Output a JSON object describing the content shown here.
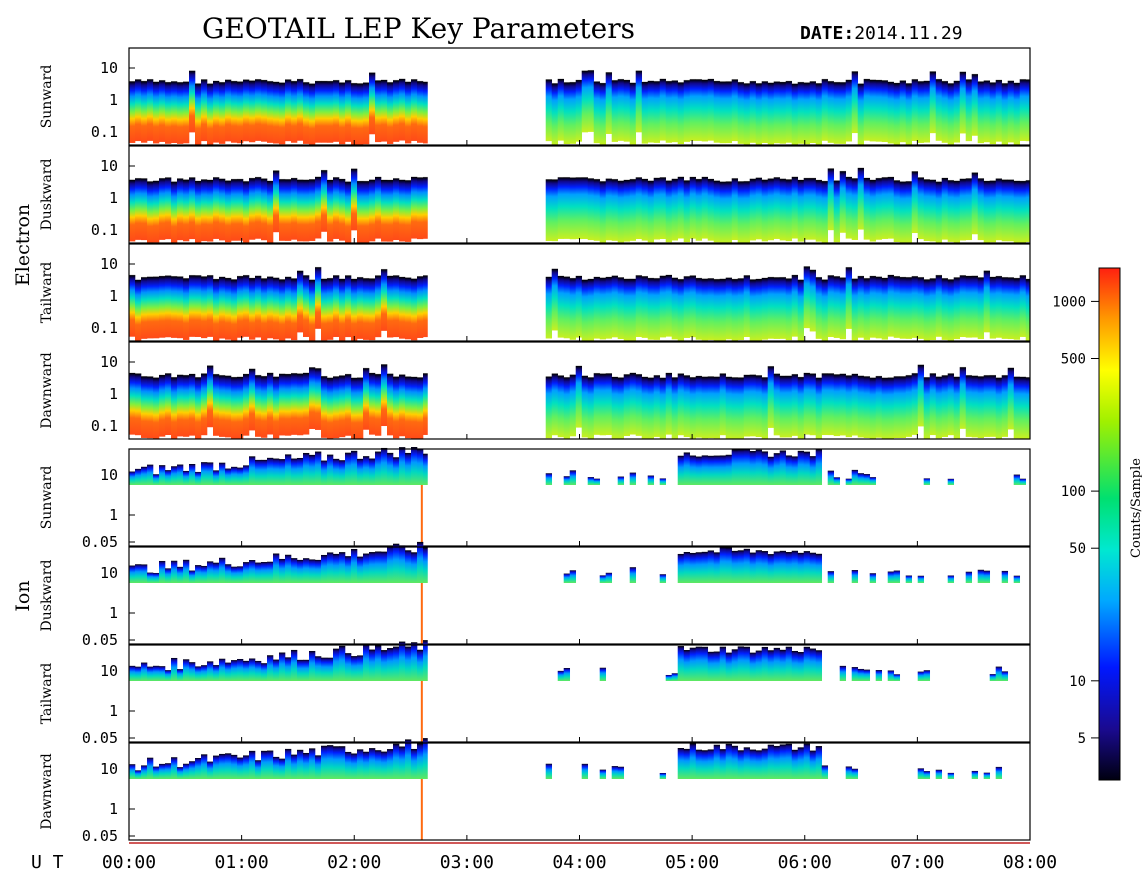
{
  "title": "GEOTAIL LEP Key Parameters",
  "date_label": "DATE:",
  "date_value": "2014.11.29",
  "ut_label": "U T",
  "groups": [
    {
      "name": "Electron",
      "panels": [
        "Sunward",
        "Duskward",
        "Tailward",
        "Dawnward"
      ]
    },
    {
      "name": "Ion",
      "panels": [
        "Sunward",
        "Duskward",
        "Tailward",
        "Dawnward"
      ]
    }
  ],
  "colorbar": {
    "label": "Counts/Sample",
    "ticks": [
      "1000",
      "500",
      "100",
      "50",
      "10",
      "5"
    ],
    "scale": "log",
    "range": [
      3,
      1500
    ]
  },
  "colors": {
    "low": "#000020",
    "mid": "#00e070",
    "high": "#ff4a18"
  },
  "chart_data": {
    "type": "heatmap",
    "title": "GEOTAIL LEP Key Parameters",
    "date": "2014.11.29",
    "x_ticks": [
      "00:00",
      "01:00",
      "02:00",
      "03:00",
      "04:00",
      "05:00",
      "06:00",
      "07:00",
      "08:00"
    ],
    "xlim_hours": [
      0,
      8
    ],
    "xlabel": "U T",
    "colorbar_label": "Counts/Sample",
    "panels": [
      {
        "species": "Electron",
        "direction": "Sunward",
        "y_scale": "log",
        "y_ticks": [
          "10",
          "1",
          "0.1"
        ],
        "data_intervals_hours": [
          [
            0,
            2.65
          ],
          [
            3.7,
            8
          ]
        ],
        "gap_hours": [
          2.65,
          3.7
        ]
      },
      {
        "species": "Electron",
        "direction": "Duskward",
        "y_scale": "log",
        "y_ticks": [
          "10",
          "1",
          "0.1"
        ],
        "data_intervals_hours": [
          [
            0,
            2.65
          ],
          [
            3.7,
            8
          ]
        ],
        "gap_hours": [
          2.65,
          3.7
        ]
      },
      {
        "species": "Electron",
        "direction": "Tailward",
        "y_scale": "log",
        "y_ticks": [
          "10",
          "1",
          "0.1"
        ],
        "data_intervals_hours": [
          [
            0,
            2.65
          ],
          [
            3.7,
            8
          ]
        ],
        "gap_hours": [
          2.65,
          3.7
        ]
      },
      {
        "species": "Electron",
        "direction": "Dawnward",
        "y_scale": "log",
        "y_ticks": [
          "10",
          "1",
          "0.1"
        ],
        "data_intervals_hours": [
          [
            0,
            2.65
          ],
          [
            3.7,
            8
          ]
        ],
        "gap_hours": [
          2.65,
          3.7
        ]
      },
      {
        "species": "Ion",
        "direction": "Sunward",
        "y_scale": "log",
        "y_ticks": [
          "10",
          "1",
          "0.05"
        ],
        "data_intervals_hours": [
          [
            0,
            2.65
          ],
          [
            3.7,
            8
          ]
        ]
      },
      {
        "species": "Ion",
        "direction": "Duskward",
        "y_scale": "log",
        "y_ticks": [
          "10",
          "1",
          "0.05"
        ],
        "data_intervals_hours": [
          [
            0,
            2.65
          ],
          [
            3.7,
            8
          ]
        ]
      },
      {
        "species": "Ion",
        "direction": "Tailward",
        "y_scale": "log",
        "y_ticks": [
          "10",
          "1",
          "0.05"
        ],
        "data_intervals_hours": [
          [
            0,
            2.65
          ],
          [
            3.7,
            8
          ]
        ]
      },
      {
        "species": "Ion",
        "direction": "Dawnward",
        "y_scale": "log",
        "y_ticks": [
          "10",
          "1",
          "0.05"
        ],
        "data_intervals_hours": [
          [
            0,
            2.65
          ],
          [
            3.7,
            8
          ]
        ]
      }
    ]
  }
}
